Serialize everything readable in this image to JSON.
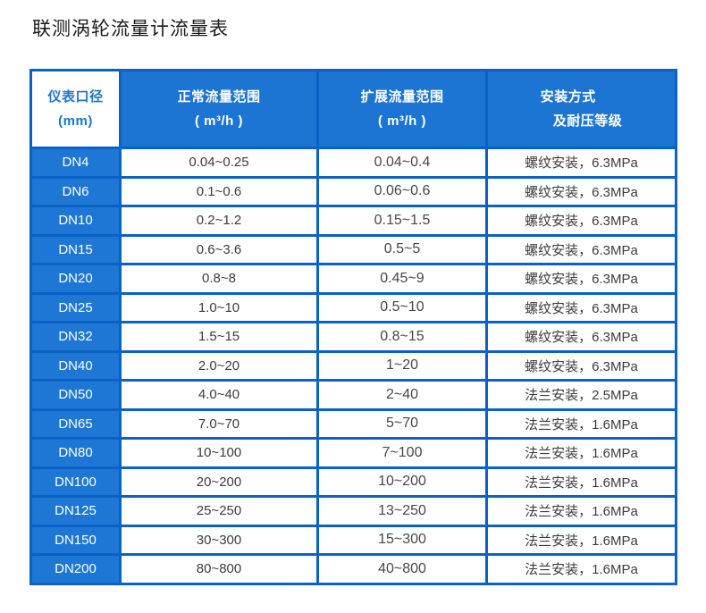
{
  "page": {
    "title": "联测涡轮流量计流量表",
    "background": "#ffffff"
  },
  "colors": {
    "header_blue": "#1c75d3",
    "row_label_blue": "#1e77d4",
    "border_blue": "#0a63c4",
    "header_first_cell_bg": "#ffffff",
    "header_first_cell_text": "#1a74d2",
    "header_text": "#ffffff",
    "body_text": "#3c3c3c"
  },
  "chart_data": {
    "type": "table",
    "title": "联测涡轮流量计流量表",
    "columns": [
      {
        "id": "diameter",
        "header_lines": [
          "仪表口径",
          "(mm)"
        ]
      },
      {
        "id": "normal_flow_range",
        "header_lines": [
          "正常流量范围",
          "( m³/h )"
        ]
      },
      {
        "id": "extended_flow_range",
        "header_lines": [
          "扩展流量范围",
          "( m³/h )"
        ]
      },
      {
        "id": "installation_pressure",
        "header_lines": [
          "安装方式",
          "及耐压等级"
        ]
      }
    ],
    "rows": [
      [
        "DN4",
        "0.04~0.25",
        "0.04~0.4",
        "螺纹安装，6.3MPa"
      ],
      [
        "DN6",
        "0.1~0.6",
        "0.06~0.6",
        "螺纹安装，6.3MPa"
      ],
      [
        "DN10",
        "0.2~1.2",
        "0.15~1.5",
        "螺纹安装，6.3MPa"
      ],
      [
        "DN15",
        "0.6~3.6",
        "0.5~5",
        "螺纹安装，6.3MPa"
      ],
      [
        "DN20",
        "0.8~8",
        "0.45~9",
        "螺纹安装，6.3MPa"
      ],
      [
        "DN25",
        "1.0~10",
        "0.5~10",
        "螺纹安装，6.3MPa"
      ],
      [
        "DN32",
        "1.5~15",
        "0.8~15",
        "螺纹安装，6.3MPa"
      ],
      [
        "DN40",
        "2.0~20",
        "1~20",
        "螺纹安装，6.3MPa"
      ],
      [
        "DN50",
        "4.0~40",
        "2~40",
        "法兰安装，2.5MPa"
      ],
      [
        "DN65",
        "7.0~70",
        "5~70",
        "法兰安装，1.6MPa"
      ],
      [
        "DN80",
        "10~100",
        "7~100",
        "法兰安装，1.6MPa"
      ],
      [
        "DN100",
        "20~200",
        "10~200",
        "法兰安装，1.6MPa"
      ],
      [
        "DN125",
        "25~250",
        "13~250",
        "法兰安装，1.6MPa"
      ],
      [
        "DN150",
        "30~300",
        "15~300",
        "法兰安装，1.6MPa"
      ],
      [
        "DN200",
        "80~800",
        "40~800",
        "法兰安装，1.6MPa"
      ]
    ]
  }
}
